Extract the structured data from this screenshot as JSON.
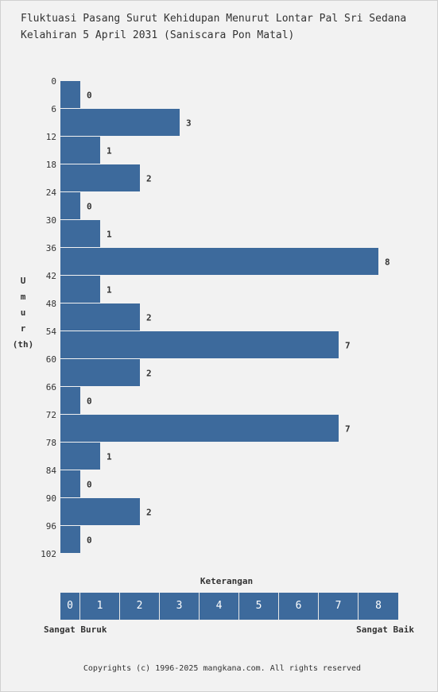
{
  "title_lines": [
    "Fluktuasi Pasang Surut Kehidupan Menurut Lontar Pal Sri Sedana",
    "Kelahiran 5 April 2031 (Saniscara Pon Matal)"
  ],
  "y_axis_label_letters": [
    "U",
    "m",
    "u",
    "r"
  ],
  "y_axis_unit": "(th)",
  "legend": {
    "title": "Keterangan",
    "scale": [
      "0",
      "1",
      "2",
      "3",
      "4",
      "5",
      "6",
      "7",
      "8"
    ],
    "low_label": "Sangat Buruk",
    "high_label": "Sangat Baik"
  },
  "footer": "Copyrights (c) 1996-2025 mangkana.com. All rights reserved",
  "colors": {
    "bar": "#3d6a9c",
    "background": "#f2f2f2",
    "text": "#333333"
  },
  "chart_data": {
    "type": "bar",
    "orientation": "horizontal",
    "title": "Fluktuasi Pasang Surut Kehidupan Menurut Lontar Pal Sri Sedana Kelahiran 5 April 2031 (Saniscara Pon Matal)",
    "ylabel": "Umur (th)",
    "xlabel": "",
    "categories": [
      "0",
      "6",
      "12",
      "18",
      "24",
      "30",
      "36",
      "42",
      "48",
      "54",
      "60",
      "66",
      "72",
      "78",
      "84",
      "90",
      "96"
    ],
    "y_ticks": [
      "0",
      "6",
      "12",
      "18",
      "24",
      "30",
      "36",
      "42",
      "48",
      "54",
      "60",
      "66",
      "72",
      "78",
      "84",
      "90",
      "96",
      "102"
    ],
    "values": [
      0,
      3,
      1,
      2,
      0,
      1,
      8,
      1,
      2,
      7,
      2,
      0,
      7,
      1,
      0,
      2,
      0
    ],
    "xlim": [
      0,
      8
    ],
    "grid": false,
    "legend_position": "bottom"
  }
}
